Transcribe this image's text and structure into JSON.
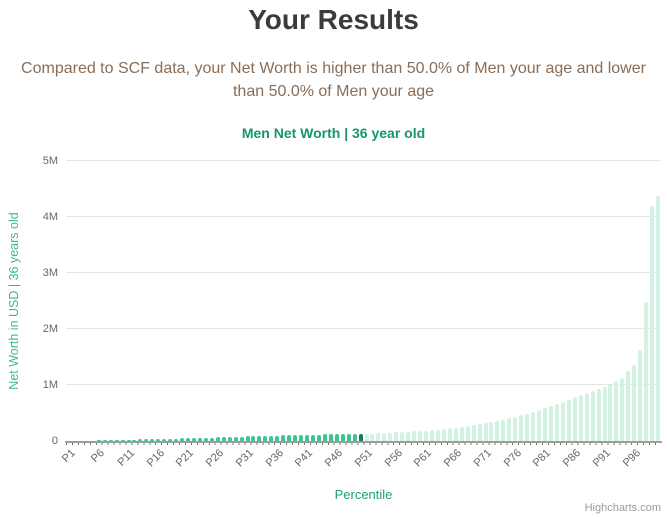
{
  "header": {
    "title": "Your Results",
    "subtitle": "Compared to SCF data, your Net Worth is higher than 50.0% of Men your age and lower than 50.0% of Men your age"
  },
  "chart_data": {
    "type": "bar",
    "title": "Men Net Worth | 36 year old",
    "xlabel": "Percentile",
    "ylabel": "Net Worth in USD | 36 years old",
    "credit": "Highcharts.com",
    "ylim": [
      0,
      5000000
    ],
    "y_ticks": [
      "0",
      "1M",
      "2M",
      "3M",
      "4M",
      "5M"
    ],
    "grid": true,
    "legend": "none",
    "x_tick_step": 5,
    "x_tick_labels": [
      "P1",
      "P6",
      "P11",
      "P16",
      "P21",
      "P26",
      "P31",
      "P36",
      "P41",
      "P46",
      "P51",
      "P56",
      "P61",
      "P66",
      "P71",
      "P76",
      "P81",
      "P86",
      "P91",
      "P96"
    ],
    "categories_note": "100 bars, percentiles P1 through P100",
    "highlight_index": 49,
    "highlight_label": "P50",
    "colors": {
      "bar_below": "#3ec58f",
      "bar_highlight": "#147d55",
      "bar_above": "#d2f2e2",
      "gridline": "#e6e6e6",
      "axis_line": "#9e9e9e",
      "title": "#3b3b3b",
      "subtitle": "#8a6d56",
      "chart_title": "#169669",
      "y_axis_title": "#3eb98c",
      "x_axis_title": "#1ea073",
      "tick_label": "#666666",
      "credit": "#9b9b9b"
    },
    "values": [
      1000,
      2000,
      4000,
      6000,
      9000,
      14000,
      16000,
      18000,
      20000,
      22000,
      24000,
      26000,
      29000,
      31000,
      34000,
      36000,
      39000,
      41000,
      44000,
      47000,
      50000,
      53000,
      56000,
      59000,
      62000,
      65000,
      68000,
      71000,
      75000,
      78000,
      82000,
      85000,
      89000,
      92000,
      96000,
      98000,
      101000,
      103000,
      107000,
      109000,
      112000,
      114000,
      116000,
      118000,
      119000,
      121000,
      123000,
      124000,
      125000,
      126000,
      130000,
      134000,
      139000,
      143000,
      148000,
      153000,
      160000,
      166000,
      172000,
      178000,
      187000,
      196000,
      205000,
      214000,
      228000,
      240000,
      253000,
      267000,
      285000,
      302000,
      320000,
      338000,
      356000,
      383000,
      409000,
      436000,
      463000,
      489000,
      516000,
      552000,
      587000,
      623000,
      658000,
      700000,
      740000,
      780000,
      820000,
      855000,
      890000,
      925000,
      970000,
      1014000,
      1068000,
      1121000,
      1246000,
      1352000,
      1619000,
      2491000,
      4200000,
      4377000
    ]
  }
}
